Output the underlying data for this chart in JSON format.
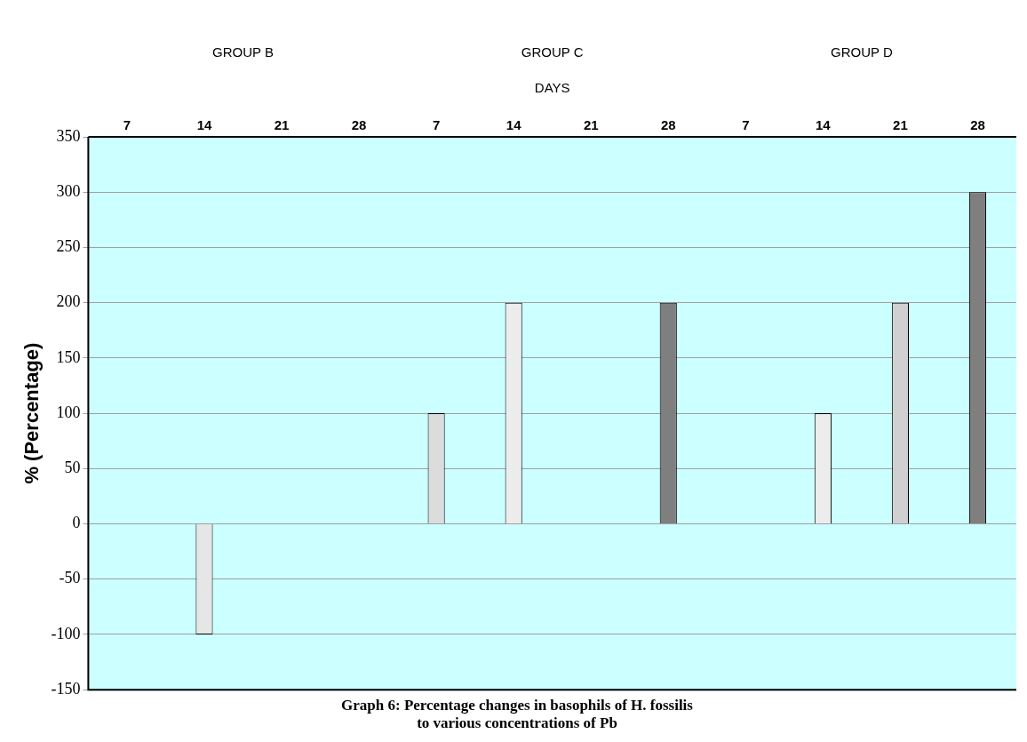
{
  "chart_data": {
    "type": "bar",
    "title": "Graph 6: Percentage changes in basophils of H. fossilis\nto various concentrations of Pb",
    "xlabel": "DAYS",
    "ylabel": "% (Percentage)",
    "annotations": [
      "GROUP B",
      "GROUP C",
      "GROUP D"
    ],
    "categories": [
      "7",
      "14",
      "21",
      "28",
      "7",
      "14",
      "21",
      "28",
      "7",
      "14",
      "21",
      "28"
    ],
    "values": [
      0,
      -100,
      0,
      0,
      100,
      200,
      0,
      200,
      0,
      100,
      200,
      300
    ],
    "colors": [
      "#e6e6e6",
      "#e6e6e6",
      "#e6e6e6",
      "#e6e6e6",
      "#dcdcdc",
      "#ececec",
      "#e6e6e6",
      "#7f7f7f",
      "#e6e6e6",
      "#ececec",
      "#d0d0d0",
      "#7f7f7f"
    ],
    "ylim": [
      -150,
      350
    ],
    "yticks": [
      -150,
      -100,
      -50,
      0,
      50,
      100,
      150,
      200,
      250,
      300,
      350
    ],
    "grid": "y",
    "legend": false
  }
}
